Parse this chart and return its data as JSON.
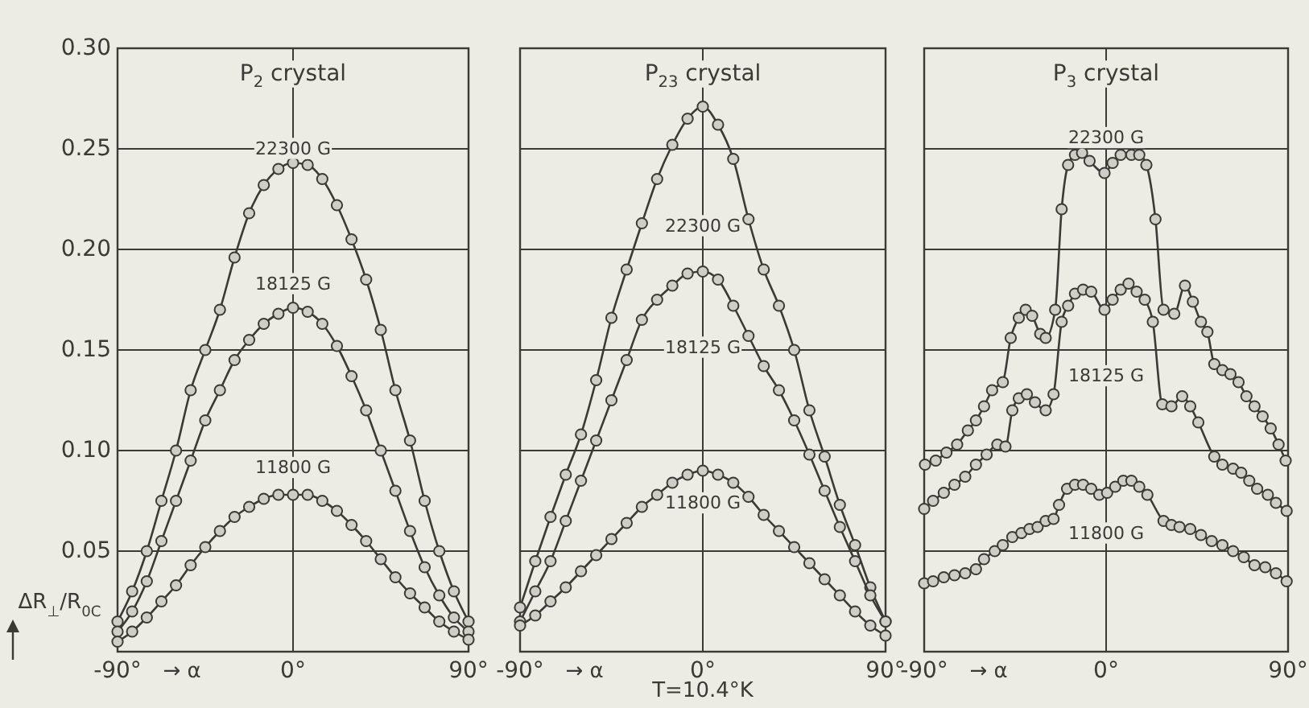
{
  "chart_data": [
    {
      "type": "line",
      "title": "P$_{2}$ crystal",
      "xlabel": "→ α",
      "ylabel": "ΔR$_{⊥}$/R$_{0C}$",
      "xlim": [
        -90,
        90
      ],
      "xticks": [
        {
          "value": -90,
          "label": "-90°"
        },
        {
          "value": 0,
          "label": "0°"
        },
        {
          "value": 90,
          "label": "90°"
        }
      ],
      "ylim": [
        0,
        0.3
      ],
      "yticks": [
        0.05,
        {
          "value": 0.1,
          "label": "0.10"
        },
        0.15,
        {
          "value": 0.2,
          "label": "0.20"
        },
        0.25,
        {
          "value": 0.3,
          "label": "0.30"
        }
      ],
      "grid": true,
      "marker": "circle",
      "line_style": "solid",
      "x": [
        -90,
        -82.5,
        -75,
        -67.5,
        -60,
        -52.5,
        -45,
        -37.5,
        -30,
        -22.5,
        -15,
        -7.5,
        0,
        7.5,
        15,
        22.5,
        30,
        37.5,
        45,
        52.5,
        60,
        67.5,
        75,
        82.5,
        90
      ],
      "series": [
        {
          "name": "22300 G",
          "color": "#3a3a36",
          "values": [
            0.015,
            0.03,
            0.05,
            0.075,
            0.1,
            0.13,
            0.15,
            0.17,
            0.196,
            0.218,
            0.232,
            0.24,
            0.243,
            0.242,
            0.235,
            0.222,
            0.205,
            0.185,
            0.16,
            0.13,
            0.105,
            0.075,
            0.05,
            0.03,
            0.015
          ]
        },
        {
          "name": "18125 G",
          "color": "#3a3a36",
          "values": [
            0.01,
            0.02,
            0.035,
            0.055,
            0.075,
            0.095,
            0.115,
            0.13,
            0.145,
            0.155,
            0.163,
            0.168,
            0.171,
            0.169,
            0.163,
            0.152,
            0.137,
            0.12,
            0.1,
            0.08,
            0.06,
            0.042,
            0.028,
            0.017,
            0.01
          ]
        },
        {
          "name": "11800 G",
          "color": "#3a3a36",
          "values": [
            0.005,
            0.01,
            0.017,
            0.025,
            0.033,
            0.043,
            0.052,
            0.06,
            0.067,
            0.072,
            0.076,
            0.078,
            0.078,
            0.078,
            0.075,
            0.07,
            0.063,
            0.055,
            0.046,
            0.037,
            0.029,
            0.022,
            0.015,
            0.01,
            0.006
          ]
        }
      ]
    },
    {
      "type": "line",
      "title": "P$_{23}$ crystal",
      "xlabel": "→ α",
      "xlim": [
        -90,
        90
      ],
      "xticks": [
        {
          "value": -90,
          "label": "-90°"
        },
        {
          "value": 0,
          "label": "0°"
        },
        {
          "value": 90,
          "label": "90°"
        }
      ],
      "ylim": [
        0,
        0.3
      ],
      "yticks": [
        0.05,
        0.1,
        0.15,
        0.2,
        0.25,
        0.3
      ],
      "grid": true,
      "marker": "circle",
      "line_style": "solid",
      "tick_labels": "x",
      "x": [
        -90,
        -82.5,
        -75,
        -67.5,
        -60,
        -52.5,
        -45,
        -37.5,
        -30,
        -22.5,
        -15,
        -7.5,
        0,
        7.5,
        15,
        22.5,
        30,
        37.5,
        45,
        52.5,
        60,
        67.5,
        75,
        82.5,
        90
      ],
      "series": [
        {
          "name": "22300 G",
          "color": "#3a3a36",
          "values": [
            0.022,
            0.045,
            0.067,
            0.088,
            0.108,
            0.135,
            0.166,
            0.19,
            0.213,
            0.235,
            0.252,
            0.265,
            0.271,
            0.262,
            0.245,
            0.215,
            0.19,
            0.172,
            0.15,
            0.12,
            0.097,
            0.073,
            0.053,
            0.032,
            0.015
          ]
        },
        {
          "name": "18125 G",
          "color": "#3a3a36",
          "values": [
            0.015,
            0.03,
            0.045,
            0.065,
            0.085,
            0.105,
            0.125,
            0.145,
            0.165,
            0.175,
            0.182,
            0.188,
            0.189,
            0.185,
            0.172,
            0.157,
            0.142,
            0.13,
            0.115,
            0.098,
            0.08,
            0.062,
            0.045,
            0.028,
            0.015
          ]
        },
        {
          "name": "11800 G",
          "color": "#3a3a36",
          "values": [
            0.013,
            0.018,
            0.025,
            0.032,
            0.04,
            0.048,
            0.056,
            0.064,
            0.072,
            0.078,
            0.084,
            0.088,
            0.09,
            0.088,
            0.084,
            0.077,
            0.068,
            0.06,
            0.052,
            0.044,
            0.036,
            0.028,
            0.02,
            0.013,
            0.008
          ]
        }
      ],
      "annotations": [
        "T=10.4°K"
      ]
    },
    {
      "type": "line",
      "title": "P$_{3}$ crystal",
      "xlabel": "→ α",
      "xlim": [
        -90,
        90
      ],
      "xticks": [
        {
          "value": -90,
          "label": "-90°"
        },
        {
          "value": 0,
          "label": "0°"
        },
        {
          "value": 90,
          "label": "90°"
        }
      ],
      "ylim": [
        0,
        0.3
      ],
      "yticks": [
        0.05,
        0.1,
        0.15,
        0.2,
        0.25,
        0.3
      ],
      "grid": true,
      "marker": "circle",
      "line_style": "solid",
      "tick_labels": "x",
      "series": [
        {
          "name": "22300 G",
          "color": "#3a3a36",
          "x": [
            -89.6,
            -84.3,
            -79,
            -73.7,
            -68.4,
            -64.4,
            -60.4,
            -56.4,
            -51.1,
            -47.2,
            -43.2,
            -39.8,
            -36.6,
            -32.6,
            -29.9,
            -25.2,
            -22,
            -18.8,
            -15.4,
            -11.9,
            -8.2,
            -0.8,
            3.2,
            7.2,
            12.5,
            16.4,
            19.9,
            24.4,
            28.4,
            33.7,
            39,
            42.9,
            46.9,
            50.1,
            53.5,
            57.5,
            61.5,
            65.5,
            69.4,
            73.4,
            77.4,
            81.4,
            85.3,
            88.8
          ],
          "values": [
            0.093,
            0.095,
            0.099,
            0.103,
            0.11,
            0.115,
            0.122,
            0.13,
            0.134,
            0.156,
            0.166,
            0.17,
            0.167,
            0.158,
            0.156,
            0.17,
            0.22,
            0.242,
            0.247,
            0.248,
            0.244,
            0.238,
            0.243,
            0.247,
            0.247,
            0.247,
            0.242,
            0.215,
            0.17,
            0.168,
            0.182,
            0.174,
            0.164,
            0.159,
            0.143,
            0.14,
            0.138,
            0.134,
            0.127,
            0.122,
            0.117,
            0.111,
            0.103,
            0.095
          ]
        },
        {
          "name": "18125 G",
          "color": "#3a3a36",
          "x": [
            -90,
            -85.6,
            -80.3,
            -75,
            -69.7,
            -64.4,
            -59.1,
            -53.8,
            -49.8,
            -46.4,
            -43.2,
            -39.2,
            -35.2,
            -29.9,
            -26,
            -22,
            -18.8,
            -15.4,
            -11.4,
            -7.4,
            -0.8,
            3.2,
            7.2,
            11.1,
            15.1,
            19.1,
            23.1,
            27.8,
            32.3,
            37.6,
            41.6,
            45.6,
            53.5,
            57.5,
            62.8,
            66.8,
            70.8,
            74.7,
            80,
            84,
            89.3
          ],
          "values": [
            0.071,
            0.075,
            0.079,
            0.083,
            0.087,
            0.093,
            0.098,
            0.103,
            0.102,
            0.12,
            0.126,
            0.128,
            0.124,
            0.12,
            0.128,
            0.164,
            0.172,
            0.178,
            0.18,
            0.179,
            0.17,
            0.175,
            0.18,
            0.183,
            0.179,
            0.175,
            0.164,
            0.123,
            0.122,
            0.127,
            0.122,
            0.114,
            0.097,
            0.093,
            0.091,
            0.089,
            0.085,
            0.081,
            0.078,
            0.074,
            0.07
          ]
        },
        {
          "name": "11800 G",
          "color": "#3a3a36",
          "x": [
            -90,
            -85.6,
            -80.3,
            -75,
            -69.7,
            -64.4,
            -60.4,
            -55.1,
            -51.1,
            -46.4,
            -41.9,
            -37.9,
            -33.9,
            -29.9,
            -26,
            -23.3,
            -19.3,
            -15.4,
            -11.4,
            -7.4,
            -3.4,
            0.5,
            4.5,
            8.5,
            12.5,
            16.4,
            20.4,
            28.4,
            32.3,
            36.3,
            41.6,
            46.9,
            52.2,
            57.5,
            62.8,
            68.1,
            73.4,
            78.7,
            84,
            89.3
          ],
          "values": [
            0.034,
            0.035,
            0.037,
            0.038,
            0.039,
            0.041,
            0.046,
            0.05,
            0.053,
            0.057,
            0.059,
            0.061,
            0.062,
            0.065,
            0.066,
            0.073,
            0.081,
            0.083,
            0.083,
            0.081,
            0.078,
            0.079,
            0.082,
            0.085,
            0.085,
            0.082,
            0.078,
            0.065,
            0.063,
            0.062,
            0.061,
            0.058,
            0.055,
            0.053,
            0.05,
            0.047,
            0.043,
            0.042,
            0.039,
            0.035
          ]
        }
      ]
    }
  ]
}
